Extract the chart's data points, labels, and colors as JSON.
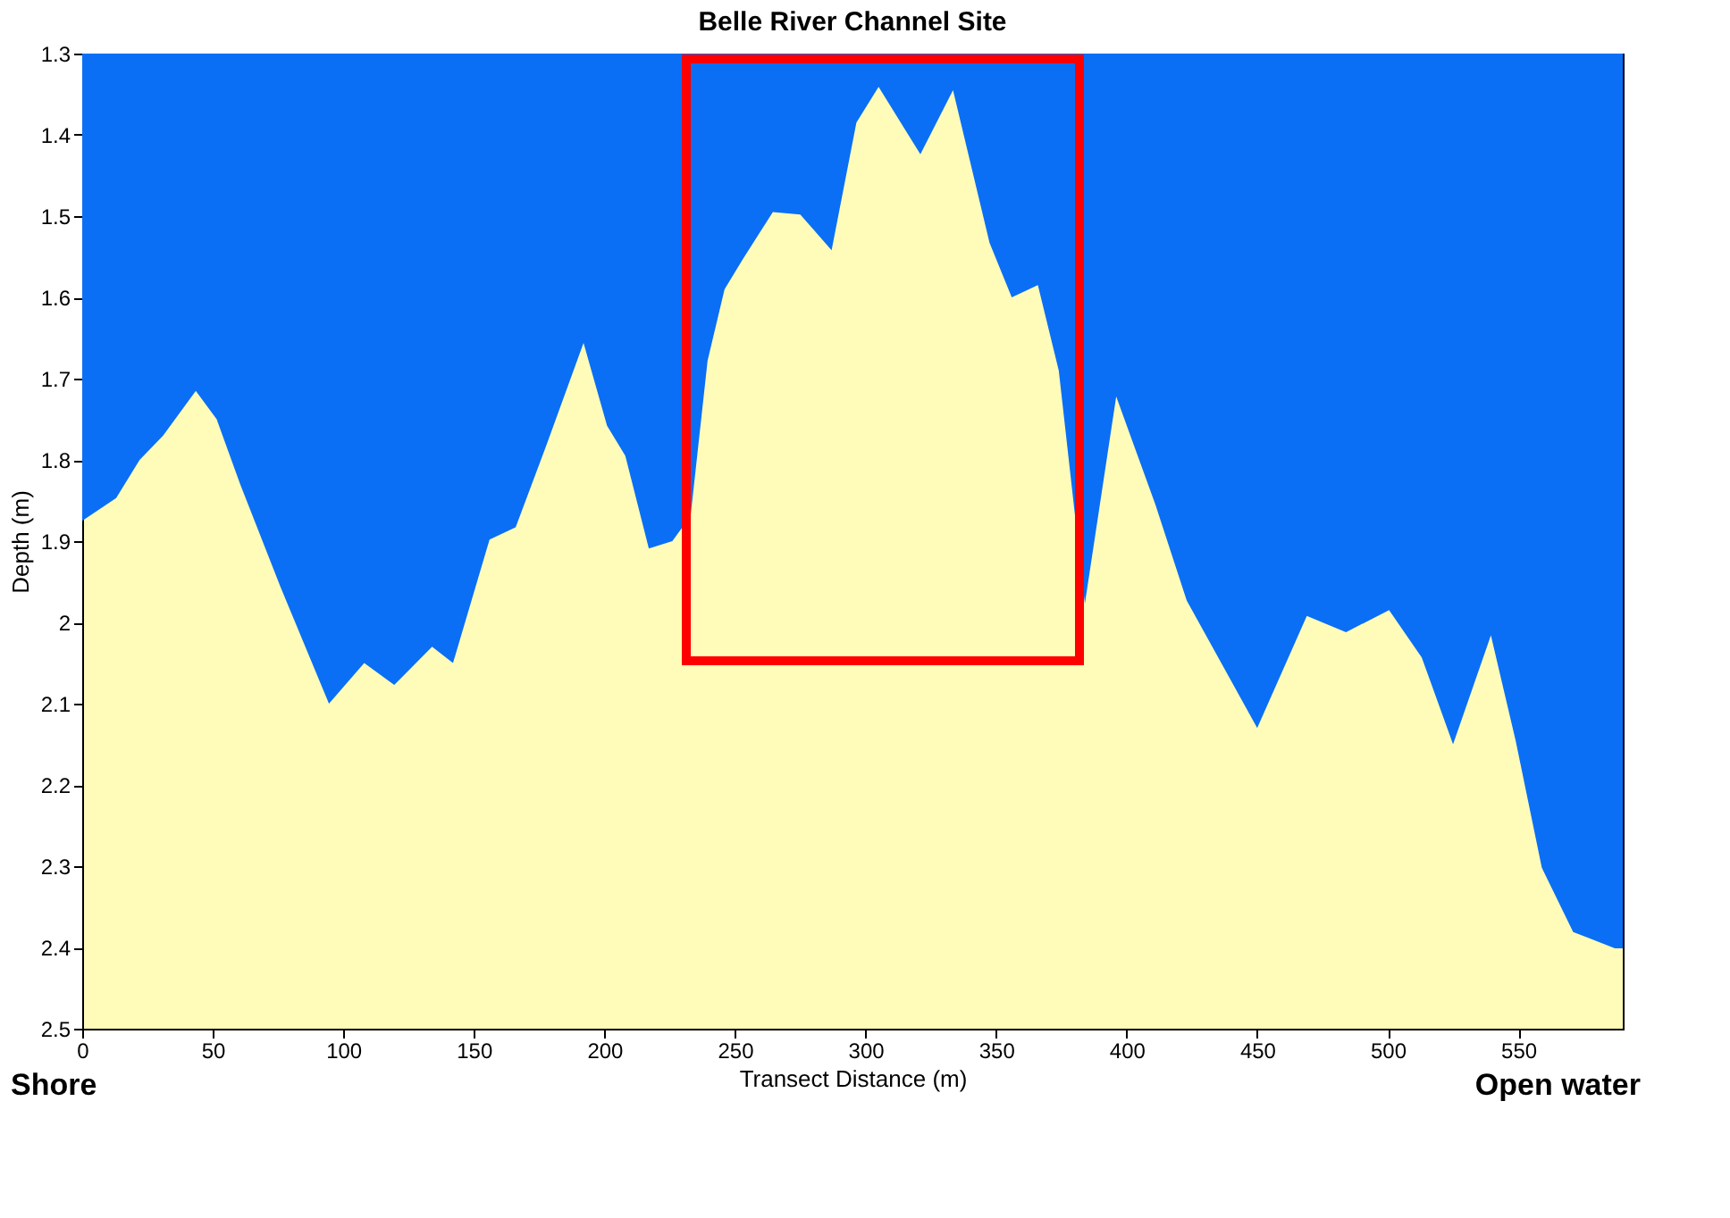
{
  "chart_data": {
    "type": "area",
    "title": "Belle River Channel Site",
    "xlabel": "Transect Distance (m)",
    "ylabel": "Depth (m)",
    "annotations": [
      "Shore",
      "Open water"
    ],
    "x": [
      0,
      13,
      22,
      31,
      43.5,
      51.5,
      60.5,
      76,
      94.5,
      108,
      119.5,
      134,
      142,
      156,
      166,
      178,
      192,
      201,
      208,
      217,
      226,
      233,
      239.5,
      246,
      253,
      264.5,
      275,
      287,
      296.5,
      305,
      321,
      333.5,
      347.5,
      356,
      366,
      374,
      384,
      396,
      411,
      423,
      450,
      469,
      484,
      500.5,
      513,
      525,
      539.5,
      549,
      559,
      571,
      587,
      590
    ],
    "series": [
      {
        "color": "#0a6ff5",
        "values": [
          1.875,
          1.847,
          1.8,
          1.77,
          1.715,
          1.75,
          1.83,
          1.957,
          2.1,
          2.05,
          2.077,
          2.03,
          2.05,
          1.898,
          1.883,
          1.78,
          1.656,
          1.758,
          1.795,
          1.909,
          1.9,
          1.869,
          1.678,
          1.59,
          1.553,
          1.495,
          1.498,
          1.542,
          1.385,
          1.341,
          1.424,
          1.345,
          1.533,
          1.6,
          1.585,
          1.69,
          1.977,
          1.722,
          1.855,
          1.973,
          2.13,
          1.992,
          2.012,
          1.985,
          2.043,
          2.15,
          2.016,
          2.146,
          2.302,
          2.381,
          2.401,
          2.401
        ]
      }
    ],
    "xlim": [
      0,
      590
    ],
    "xticks": [
      0,
      50,
      100,
      150,
      200,
      250,
      300,
      350,
      400,
      450,
      500,
      550
    ],
    "ylim": [
      2.5,
      1.3
    ],
    "yticks": [
      1.3,
      1.4,
      1.5,
      1.6,
      1.7,
      1.8,
      1.9,
      {
        "value": 2,
        "label": "2"
      },
      2.1,
      2.2,
      2.3,
      2.4,
      2.5
    ],
    "grid": false,
    "legend": false
  }
}
